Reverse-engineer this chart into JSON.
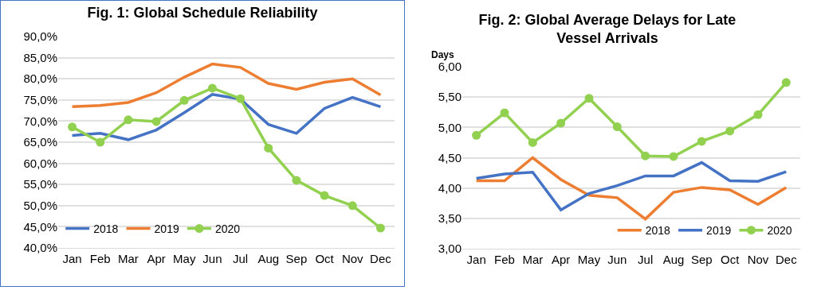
{
  "chart_data": [
    {
      "type": "line",
      "title": "Fig. 1: Global Schedule Reliability",
      "categories": [
        "Jan",
        "Feb",
        "Mar",
        "Apr",
        "May",
        "Jun",
        "Jul",
        "Aug",
        "Sep",
        "Oct",
        "Nov",
        "Dec"
      ],
      "series": [
        {
          "name": "2018",
          "color": "#4472c4",
          "marker": "none",
          "values": [
            66.6,
            67.1,
            65.6,
            67.9,
            72.0,
            76.3,
            75.2,
            69.2,
            67.1,
            73.0,
            75.6,
            73.4
          ]
        },
        {
          "name": "2019",
          "color": "#ed7d31",
          "marker": "none",
          "values": [
            73.4,
            73.7,
            74.4,
            76.7,
            80.4,
            83.5,
            82.7,
            78.9,
            77.5,
            79.2,
            80.0,
            76.2
          ]
        },
        {
          "name": "2020",
          "color": "#92d050",
          "marker": "circle",
          "values": [
            68.6,
            65.0,
            70.3,
            69.9,
            74.9,
            77.8,
            75.3,
            63.6,
            56.0,
            52.4,
            50.0,
            44.7
          ]
        }
      ],
      "ylim": [
        40,
        90
      ],
      "yticks": [
        {
          "value": 40,
          "label": "40,0%"
        },
        {
          "value": 45,
          "label": "45,0%"
        },
        {
          "value": 50,
          "label": "50,0%"
        },
        {
          "value": 55,
          "label": "55,0%"
        },
        {
          "value": 60,
          "label": "60,0%"
        },
        {
          "value": 65,
          "label": "65,0%"
        },
        {
          "value": 70,
          "label": "70,0%"
        },
        {
          "value": 75,
          "label": "75,0%"
        },
        {
          "value": 80,
          "label": "80,0%"
        },
        {
          "value": 85,
          "label": "85,0%"
        },
        {
          "value": 90,
          "label": "90,0%"
        }
      ],
      "grid": "y",
      "legend": "bottom left"
    },
    {
      "type": "line",
      "title": "Fig. 2: Global Average Delays for Late Vessel Arrivals",
      "ylabel": "Days",
      "categories": [
        "Jan",
        "Feb",
        "Mar",
        "Apr",
        "May",
        "Jun",
        "Jul",
        "Aug",
        "Sep",
        "Oct",
        "Nov",
        "Dec"
      ],
      "series": [
        {
          "name": "2018",
          "color": "#ed7d31",
          "marker": "none",
          "values": [
            4.12,
            4.12,
            4.5,
            4.14,
            3.88,
            3.84,
            3.49,
            3.93,
            4.01,
            3.97,
            3.73,
            4.01
          ]
        },
        {
          "name": "2019",
          "color": "#4472c4",
          "marker": "none",
          "values": [
            4.16,
            4.23,
            4.26,
            3.64,
            3.91,
            4.04,
            4.2,
            4.2,
            4.42,
            4.12,
            4.11,
            4.27
          ]
        },
        {
          "name": "2020",
          "color": "#92d050",
          "marker": "circle",
          "values": [
            4.87,
            5.24,
            4.75,
            5.07,
            5.48,
            5.01,
            4.53,
            4.52,
            4.77,
            4.94,
            5.21,
            5.74
          ]
        }
      ],
      "ylim": [
        3,
        6
      ],
      "yticks": [
        {
          "value": 3,
          "label": "3,00"
        },
        {
          "value": 3.5,
          "label": "3,50"
        },
        {
          "value": 4,
          "label": "4,00"
        },
        {
          "value": 4.5,
          "label": "4,50"
        },
        {
          "value": 5,
          "label": "5,00"
        },
        {
          "value": 5.5,
          "label": "5,50"
        },
        {
          "value": 6,
          "label": "6,00"
        }
      ],
      "grid": "y",
      "legend": "bottom right"
    }
  ]
}
